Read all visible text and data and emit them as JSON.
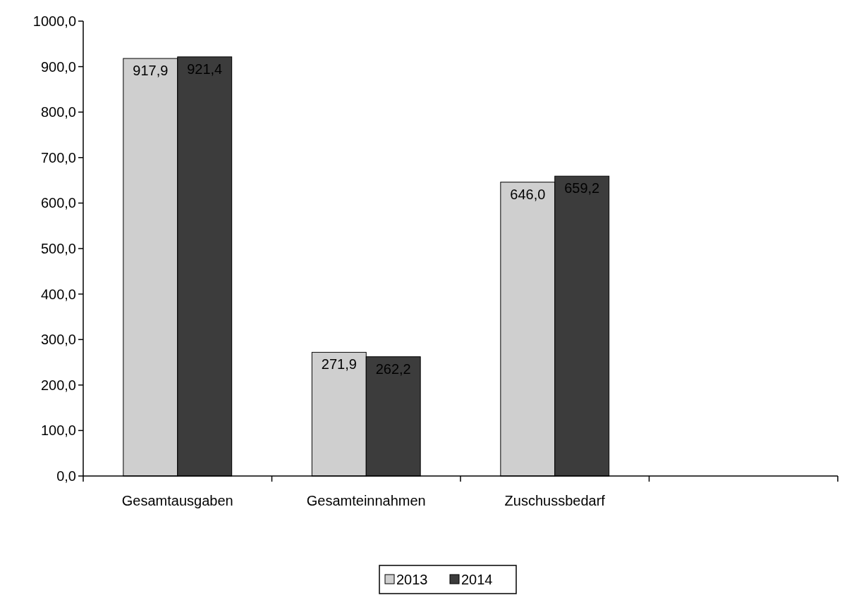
{
  "chart_data": {
    "type": "bar",
    "categories": [
      "Gesamtausgaben",
      "Gesamteinnahmen",
      "Zuschussbedarf",
      null
    ],
    "series": [
      {
        "name": "2013",
        "color": "#cfcfcf",
        "values": [
          917.9,
          271.9,
          646.0,
          null
        ],
        "value_labels": [
          "917,9",
          "271,9",
          "646,0",
          null
        ]
      },
      {
        "name": "2014",
        "color": "#3c3c3c",
        "values": [
          921.4,
          262.2,
          659.2,
          null
        ],
        "value_labels": [
          "921,4",
          "262,2",
          "659,2",
          null
        ]
      }
    ],
    "ylim": [
      0,
      1000
    ],
    "yticks": [
      {
        "value": 0,
        "label": "0,0"
      },
      {
        "value": 100,
        "label": "100,0"
      },
      {
        "value": 200,
        "label": "200,0"
      },
      {
        "value": 300,
        "label": "300,0"
      },
      {
        "value": 400,
        "label": "400,0"
      },
      {
        "value": 500,
        "label": "500,0"
      },
      {
        "value": 600,
        "label": "600,0"
      },
      {
        "value": 700,
        "label": "700,0"
      },
      {
        "value": 800,
        "label": "800,0"
      },
      {
        "value": 900,
        "label": "900,0"
      },
      {
        "value": 1000,
        "label": "1000,0"
      }
    ],
    "grid": false,
    "legend": "bottom"
  }
}
